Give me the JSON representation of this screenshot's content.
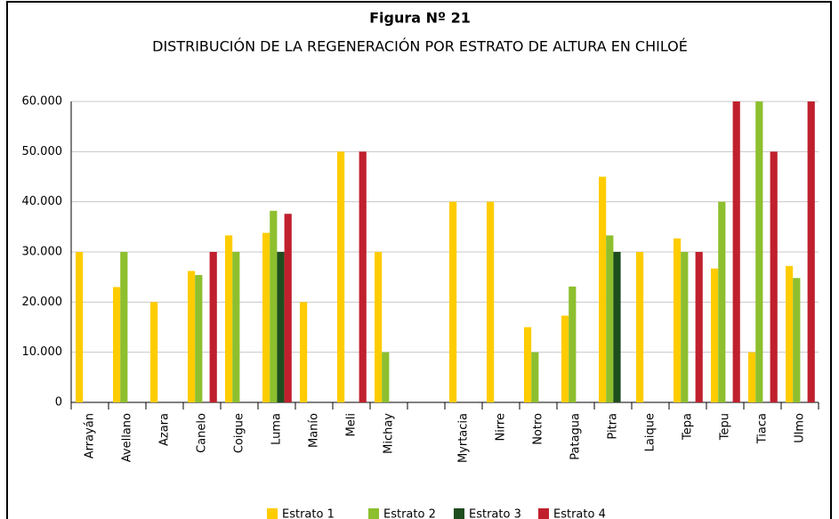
{
  "chart_data": {
    "type": "bar",
    "title": "Figura Nº 21",
    "subtitle": "DISTRIBUCIÓN DE LA REGENERACIÓN POR ESTRATO DE ALTURA EN CHILOÉ",
    "categories": [
      "Arrayán",
      "Avellano",
      "Azara",
      "Canelo",
      "Coigue",
      "Luma",
      "Manío",
      "Meli",
      "Michay",
      null,
      "Myrtacia",
      "Nirre",
      "Notro",
      "Patagua",
      "Pitra",
      "Laique",
      "Tepa",
      "Tepu",
      "Tiaca",
      "Ulmo"
    ],
    "series": [
      {
        "name": "Estrato 1",
        "color": "#ffcc00",
        "values": [
          30000,
          23000,
          20000,
          26200,
          33300,
          33800,
          20000,
          50000,
          30000,
          null,
          40000,
          40000,
          15000,
          17300,
          45000,
          30000,
          32700,
          26700,
          10000,
          27200
        ]
      },
      {
        "name": "Estrato 2",
        "color": "#8dbf2e",
        "values": [
          null,
          30000,
          null,
          25400,
          30000,
          38200,
          null,
          null,
          10000,
          null,
          null,
          null,
          10000,
          23100,
          33300,
          null,
          30000,
          40000,
          60000,
          24800
        ]
      },
      {
        "name": "Estrato 3",
        "color": "#1e4d1e",
        "values": [
          null,
          null,
          null,
          null,
          null,
          30000,
          null,
          null,
          null,
          null,
          null,
          null,
          null,
          null,
          30000,
          null,
          null,
          null,
          null,
          null
        ]
      },
      {
        "name": "Estrato 4",
        "color": "#c0202e",
        "values": [
          null,
          null,
          null,
          30000,
          null,
          37600,
          null,
          50000,
          null,
          null,
          null,
          null,
          null,
          null,
          null,
          null,
          30000,
          60000,
          50000,
          60000
        ]
      }
    ],
    "ylim": [
      0,
      60000
    ],
    "yticks": [
      0,
      {
        "value": 10000,
        "label": "10.000"
      },
      {
        "value": 20000,
        "label": "20.000"
      },
      {
        "value": 30000,
        "label": "30.000"
      },
      {
        "value": 40000,
        "label": "40.000"
      },
      {
        "value": 50000,
        "label": "50.000"
      },
      {
        "value": 60000,
        "label": "60.000"
      }
    ],
    "grid": true
  }
}
